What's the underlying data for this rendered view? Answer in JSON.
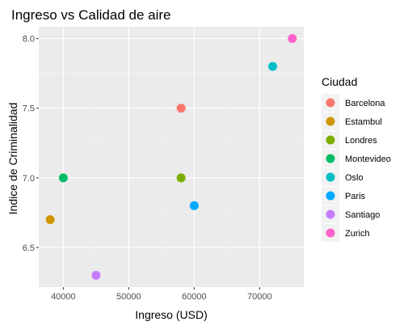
{
  "chart_data": {
    "type": "scatter",
    "title": "Ingreso vs Calidad de aire",
    "xlabel": "Ingreso (USD)",
    "ylabel": "Indice de Criminalidad",
    "xlim": [
      36250,
      76750
    ],
    "ylim": [
      6.215,
      8.085
    ],
    "x_ticks": [
      40000,
      50000,
      60000,
      70000
    ],
    "y_ticks": [
      6.5,
      7.0,
      7.5,
      8.0
    ],
    "x_tick_labels": [
      "40000",
      "50000",
      "60000",
      "70000"
    ],
    "y_tick_labels": [
      "6.5",
      "7.0",
      "7.5",
      "8.0"
    ],
    "grid": true,
    "legend": {
      "title": "Ciudad",
      "position": "right"
    },
    "series": [
      {
        "name": "Barcelona",
        "color": "#F8766D",
        "x": 58000,
        "y": 7.5
      },
      {
        "name": "Estambul",
        "color": "#CD9600",
        "x": 38000,
        "y": 6.7
      },
      {
        "name": "Londres",
        "color": "#7CAE00",
        "x": 58000,
        "y": 7.0
      },
      {
        "name": "Montevideo",
        "color": "#00BE67",
        "x": 40000,
        "y": 7.0
      },
      {
        "name": "Oslo",
        "color": "#00BFC4",
        "x": 72000,
        "y": 7.8
      },
      {
        "name": "Paris",
        "color": "#00A9FF",
        "x": 60000,
        "y": 6.8
      },
      {
        "name": "Santiago",
        "color": "#C77CFF",
        "x": 45000,
        "y": 6.3
      },
      {
        "name": "Zurich",
        "color": "#FF61CC",
        "x": 75000,
        "y": 8.0
      }
    ]
  }
}
